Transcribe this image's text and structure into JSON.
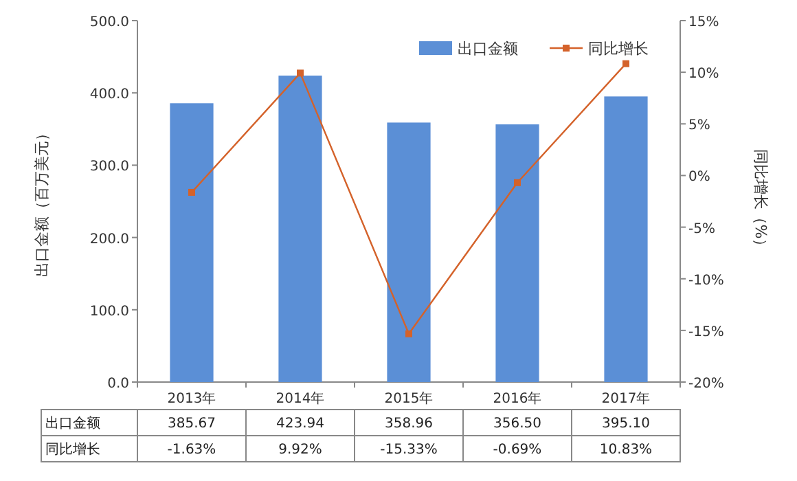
{
  "chart_data": {
    "type": "bar",
    "categories": [
      "2013年",
      "2014年",
      "2015年",
      "2016年",
      "2017年"
    ],
    "series": [
      {
        "name": "出口金额",
        "color": "#5b8fd6",
        "values": [
          385.67,
          423.94,
          358.96,
          356.5,
          395.1
        ],
        "value_labels": [
          "385.67",
          "423.94",
          "358.96",
          "356.50",
          "395.10"
        ]
      },
      {
        "name": "同比增长",
        "type": "line",
        "axis": "y2",
        "color": "#d4622a",
        "values": [
          -1.63,
          9.92,
          -15.33,
          -0.69,
          10.83
        ],
        "value_labels": [
          "-1.63%",
          "9.92%",
          "-15.33%",
          "-0.69%",
          "10.83%"
        ]
      }
    ],
    "ylabel": "出口金额（百万美元）",
    "y2label": "同比增长（%）",
    "ylim": [
      0,
      500
    ],
    "yticks": [
      {
        "value": 0,
        "label": "0.0"
      },
      {
        "value": 100,
        "label": "100.0"
      },
      {
        "value": 200,
        "label": "200.0"
      },
      {
        "value": 300,
        "label": "300.0"
      },
      {
        "value": 400,
        "label": "400.0"
      },
      {
        "value": 500,
        "label": "500.0"
      }
    ],
    "y2lim": [
      -20,
      15
    ],
    "y2ticks": [
      {
        "value": -20,
        "label": "-20%"
      },
      {
        "value": -15,
        "label": "-15%"
      },
      {
        "value": -10,
        "label": "-10%"
      },
      {
        "value": -5,
        "label": "-5%"
      },
      {
        "value": 0,
        "label": "0%"
      },
      {
        "value": 5,
        "label": "5%"
      },
      {
        "value": 10,
        "label": "10%"
      },
      {
        "value": 15,
        "label": "15%"
      }
    ],
    "legend": "top right",
    "marker": "square",
    "grid": false
  }
}
